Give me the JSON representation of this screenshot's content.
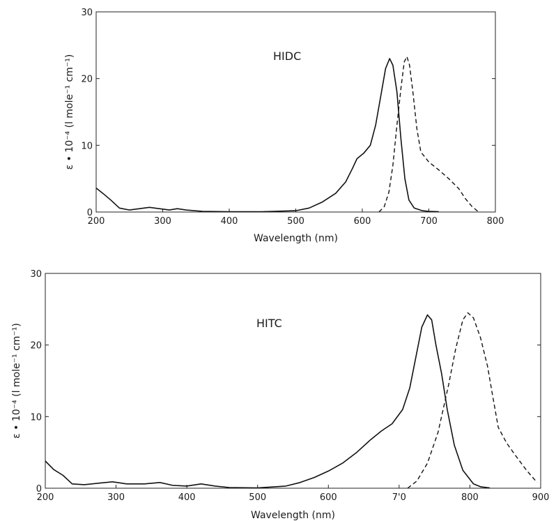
{
  "chart_data": [
    {
      "type": "line",
      "panel_label": "HIDC",
      "xlabel": "Wavelength (nm)",
      "ylabel": "ε • 10⁻⁴ (l mole⁻¹ cm⁻¹)",
      "xlim": [
        200,
        800
      ],
      "ylim": [
        0,
        30
      ],
      "x_ticks": [
        "200",
        "300",
        "400",
        "500",
        "600",
        "700",
        "800"
      ],
      "y_ticks": [
        "0",
        "10",
        "20",
        "30"
      ],
      "grid": false,
      "series": [
        {
          "style": "solid",
          "points": [
            [
              200,
              3.6
            ],
            [
              210,
              2.8
            ],
            [
              222,
              1.8
            ],
            [
              235,
              0.6
            ],
            [
              250,
              0.3
            ],
            [
              265,
              0.5
            ],
            [
              280,
              0.7
            ],
            [
              295,
              0.5
            ],
            [
              310,
              0.3
            ],
            [
              322,
              0.5
            ],
            [
              335,
              0.3
            ],
            [
              360,
              0.1
            ],
            [
              400,
              0.05
            ],
            [
              450,
              0.05
            ],
            [
              500,
              0.2
            ],
            [
              520,
              0.6
            ],
            [
              540,
              1.5
            ],
            [
              560,
              2.8
            ],
            [
              575,
              4.5
            ],
            [
              585,
              6.5
            ],
            [
              592,
              8.0
            ],
            [
              602,
              8.8
            ],
            [
              612,
              10.0
            ],
            [
              620,
              13.0
            ],
            [
              628,
              17.5
            ],
            [
              635,
              21.5
            ],
            [
              641,
              23.0
            ],
            [
              646,
              22.0
            ],
            [
              652,
              18.0
            ],
            [
              658,
              11.0
            ],
            [
              664,
              5.0
            ],
            [
              670,
              1.8
            ],
            [
              678,
              0.6
            ],
            [
              690,
              0.2
            ],
            [
              700,
              0.1
            ],
            [
              715,
              0.05
            ]
          ]
        },
        {
          "style": "dashed",
          "points": [
            [
              625,
              0.0
            ],
            [
              633,
              0.8
            ],
            [
              640,
              3.0
            ],
            [
              646,
              7.0
            ],
            [
              652,
              13.0
            ],
            [
              658,
              18.5
            ],
            [
              663,
              22.5
            ],
            [
              667,
              23.3
            ],
            [
              671,
              22.0
            ],
            [
              676,
              18.0
            ],
            [
              682,
              12.5
            ],
            [
              688,
              9.0
            ],
            [
              700,
              7.5
            ],
            [
              715,
              6.3
            ],
            [
              730,
              5.0
            ],
            [
              745,
              3.5
            ],
            [
              755,
              2.0
            ],
            [
              765,
              0.8
            ],
            [
              775,
              0.0
            ]
          ]
        }
      ]
    },
    {
      "type": "line",
      "panel_label": "HITC",
      "xlabel": "Wavelength (nm)",
      "ylabel": "ε • 10⁻⁴ (l mole⁻¹ cm⁻¹)",
      "xlim": [
        200,
        900
      ],
      "ylim": [
        0,
        30
      ],
      "x_ticks": [
        "200",
        "300",
        "400",
        "500",
        "600",
        "7'0",
        "800",
        "900"
      ],
      "y_ticks": [
        "0",
        "10",
        "20",
        "30"
      ],
      "grid": false,
      "series": [
        {
          "style": "solid",
          "points": [
            [
              200,
              3.8
            ],
            [
              212,
              2.6
            ],
            [
              225,
              1.8
            ],
            [
              238,
              0.6
            ],
            [
              255,
              0.5
            ],
            [
              275,
              0.7
            ],
            [
              295,
              0.9
            ],
            [
              315,
              0.6
            ],
            [
              340,
              0.6
            ],
            [
              362,
              0.8
            ],
            [
              380,
              0.4
            ],
            [
              400,
              0.3
            ],
            [
              420,
              0.6
            ],
            [
              440,
              0.3
            ],
            [
              460,
              0.1
            ],
            [
              500,
              0.05
            ],
            [
              540,
              0.3
            ],
            [
              560,
              0.8
            ],
            [
              580,
              1.5
            ],
            [
              600,
              2.4
            ],
            [
              620,
              3.5
            ],
            [
              640,
              5.0
            ],
            [
              660,
              6.8
            ],
            [
              675,
              8.0
            ],
            [
              690,
              9.0
            ],
            [
              705,
              11.0
            ],
            [
              715,
              14.0
            ],
            [
              725,
              19.0
            ],
            [
              732,
              22.5
            ],
            [
              740,
              24.2
            ],
            [
              746,
              23.5
            ],
            [
              752,
              20.0
            ],
            [
              760,
              16.0
            ],
            [
              768,
              11.0
            ],
            [
              778,
              6.0
            ],
            [
              790,
              2.5
            ],
            [
              805,
              0.6
            ],
            [
              815,
              0.2
            ],
            [
              828,
              0.05
            ]
          ]
        },
        {
          "style": "dashed",
          "points": [
            [
              712,
              0.0
            ],
            [
              725,
              1.0
            ],
            [
              740,
              3.5
            ],
            [
              755,
              7.8
            ],
            [
              770,
              14.5
            ],
            [
              780,
              19.5
            ],
            [
              790,
              23.5
            ],
            [
              797,
              24.5
            ],
            [
              805,
              23.8
            ],
            [
              815,
              21.0
            ],
            [
              825,
              17.0
            ],
            [
              832,
              13.0
            ],
            [
              840,
              8.5
            ],
            [
              852,
              6.3
            ],
            [
              865,
              4.5
            ],
            [
              880,
              2.5
            ],
            [
              895,
              0.8
            ]
          ]
        }
      ]
    }
  ]
}
